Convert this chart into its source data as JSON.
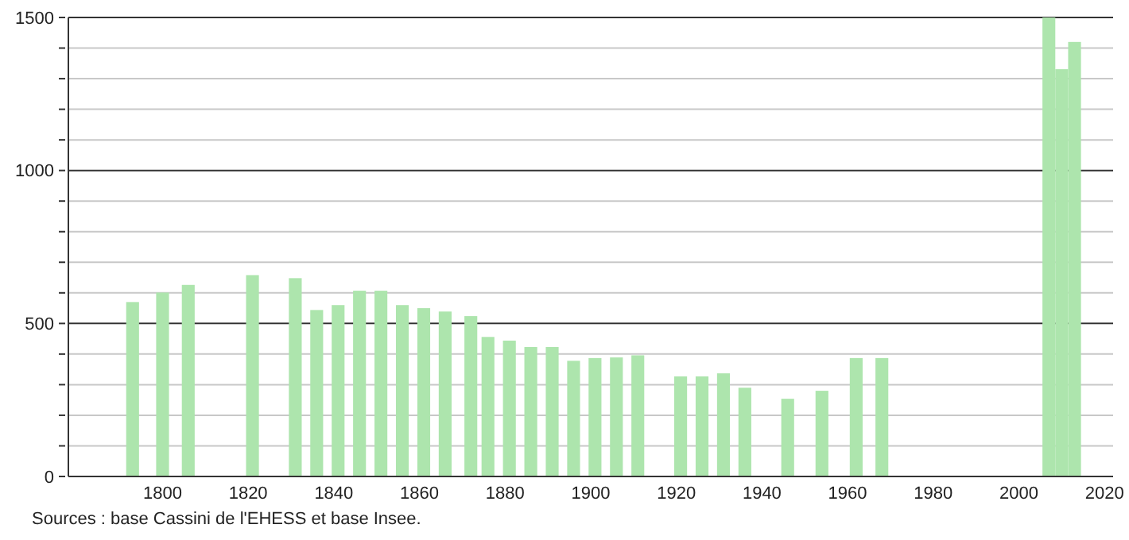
{
  "chart_data": {
    "type": "bar",
    "x": [
      1793,
      1800,
      1806,
      1821,
      1831,
      1836,
      1841,
      1846,
      1851,
      1856,
      1861,
      1866,
      1872,
      1876,
      1881,
      1886,
      1891,
      1896,
      1901,
      1906,
      1911,
      1921,
      1926,
      1931,
      1936,
      1946,
      1954,
      1962,
      1968,
      2007,
      2010,
      2013
    ],
    "values": [
      570,
      601,
      626,
      658,
      648,
      544,
      560,
      607,
      607,
      560,
      550,
      539,
      524,
      456,
      444,
      423,
      423,
      378,
      387,
      389,
      396,
      327,
      327,
      337,
      290,
      254,
      280,
      387,
      387,
      1500,
      1331,
      1420
    ],
    "color": "#ade5ad",
    "xlim": [
      1778,
      2022
    ],
    "xticks": [
      1800,
      1820,
      1840,
      1860,
      1880,
      1900,
      1920,
      1940,
      1960,
      1980,
      2000,
      2020
    ],
    "ylim": [
      0,
      1500
    ],
    "yticks": [
      0,
      {
        "value": 100,
        "label": null
      },
      {
        "value": 200,
        "label": null
      },
      {
        "value": 300,
        "label": null
      },
      {
        "value": 400,
        "label": null
      },
      500,
      {
        "value": 600,
        "label": null
      },
      {
        "value": 700,
        "label": null
      },
      {
        "value": 800,
        "label": null
      },
      {
        "value": 900,
        "label": null
      },
      1000,
      {
        "value": 1100,
        "label": null
      },
      {
        "value": 1200,
        "label": null
      },
      {
        "value": 1300,
        "label": null
      },
      {
        "value": 1400,
        "label": null
      },
      1500
    ],
    "grid": true,
    "annotations": [
      "Sources : base Cassini de l'EHESS et base Insee."
    ]
  }
}
